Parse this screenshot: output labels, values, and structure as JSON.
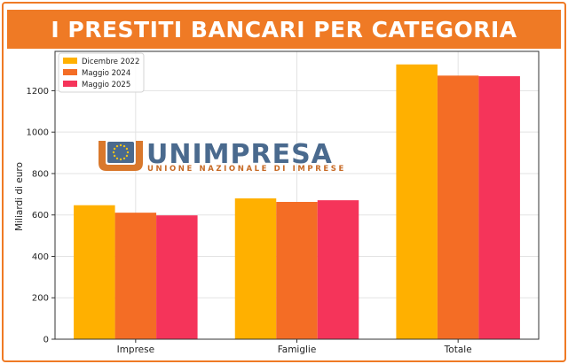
{
  "chart_data": {
    "type": "bar",
    "title": "I PRESTITI BANCARI PER CATEGORIA",
    "categories": [
      "Imprese",
      "Famiglie",
      "Totale"
    ],
    "series": [
      {
        "name": "Dicembre 2022",
        "values": [
          647,
          680,
          1327
        ],
        "color": "#ffb000"
      },
      {
        "name": "Maggio 2024",
        "values": [
          611,
          663,
          1273
        ],
        "color": "#f46d25"
      },
      {
        "name": "Maggio 2025",
        "values": [
          598,
          671,
          1270
        ],
        "color": "#f5345a"
      }
    ],
    "xlabel": "",
    "ylabel": "Miliardi di euro",
    "ylim": [
      0,
      1390
    ],
    "yticks": [
      0,
      200,
      400,
      600,
      800,
      1000,
      1200
    ],
    "grid": true,
    "legend_position": "top-left"
  },
  "logo": {
    "main": "UNIMPRESA",
    "sub": "UNIONE NAZIONALE DI IMPRESE",
    "icon": "eu-stars-shield-icon"
  }
}
